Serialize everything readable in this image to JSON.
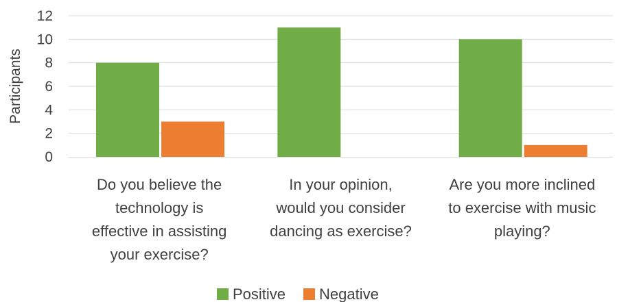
{
  "chart_data": {
    "type": "bar",
    "title": "",
    "xlabel": "",
    "ylabel": "Participants",
    "ylim": [
      0,
      12
    ],
    "yticks": [
      0,
      2,
      4,
      6,
      8,
      10,
      12
    ],
    "grid": true,
    "legend_position": "bottom",
    "categories": [
      [
        "Do you believe the",
        "technology is",
        "effective in assisting",
        "your exercise?"
      ],
      [
        "In your opinion,",
        "would you consider",
        "dancing as exercise?"
      ],
      [
        "Are you more inclined",
        "to exercise with music",
        "playing?"
      ]
    ],
    "series": [
      {
        "name": "Positive",
        "values": [
          8,
          11,
          10
        ],
        "color": "#70ad47"
      },
      {
        "name": "Negative",
        "values": [
          3,
          0,
          1
        ],
        "color": "#ed7d31"
      }
    ]
  }
}
